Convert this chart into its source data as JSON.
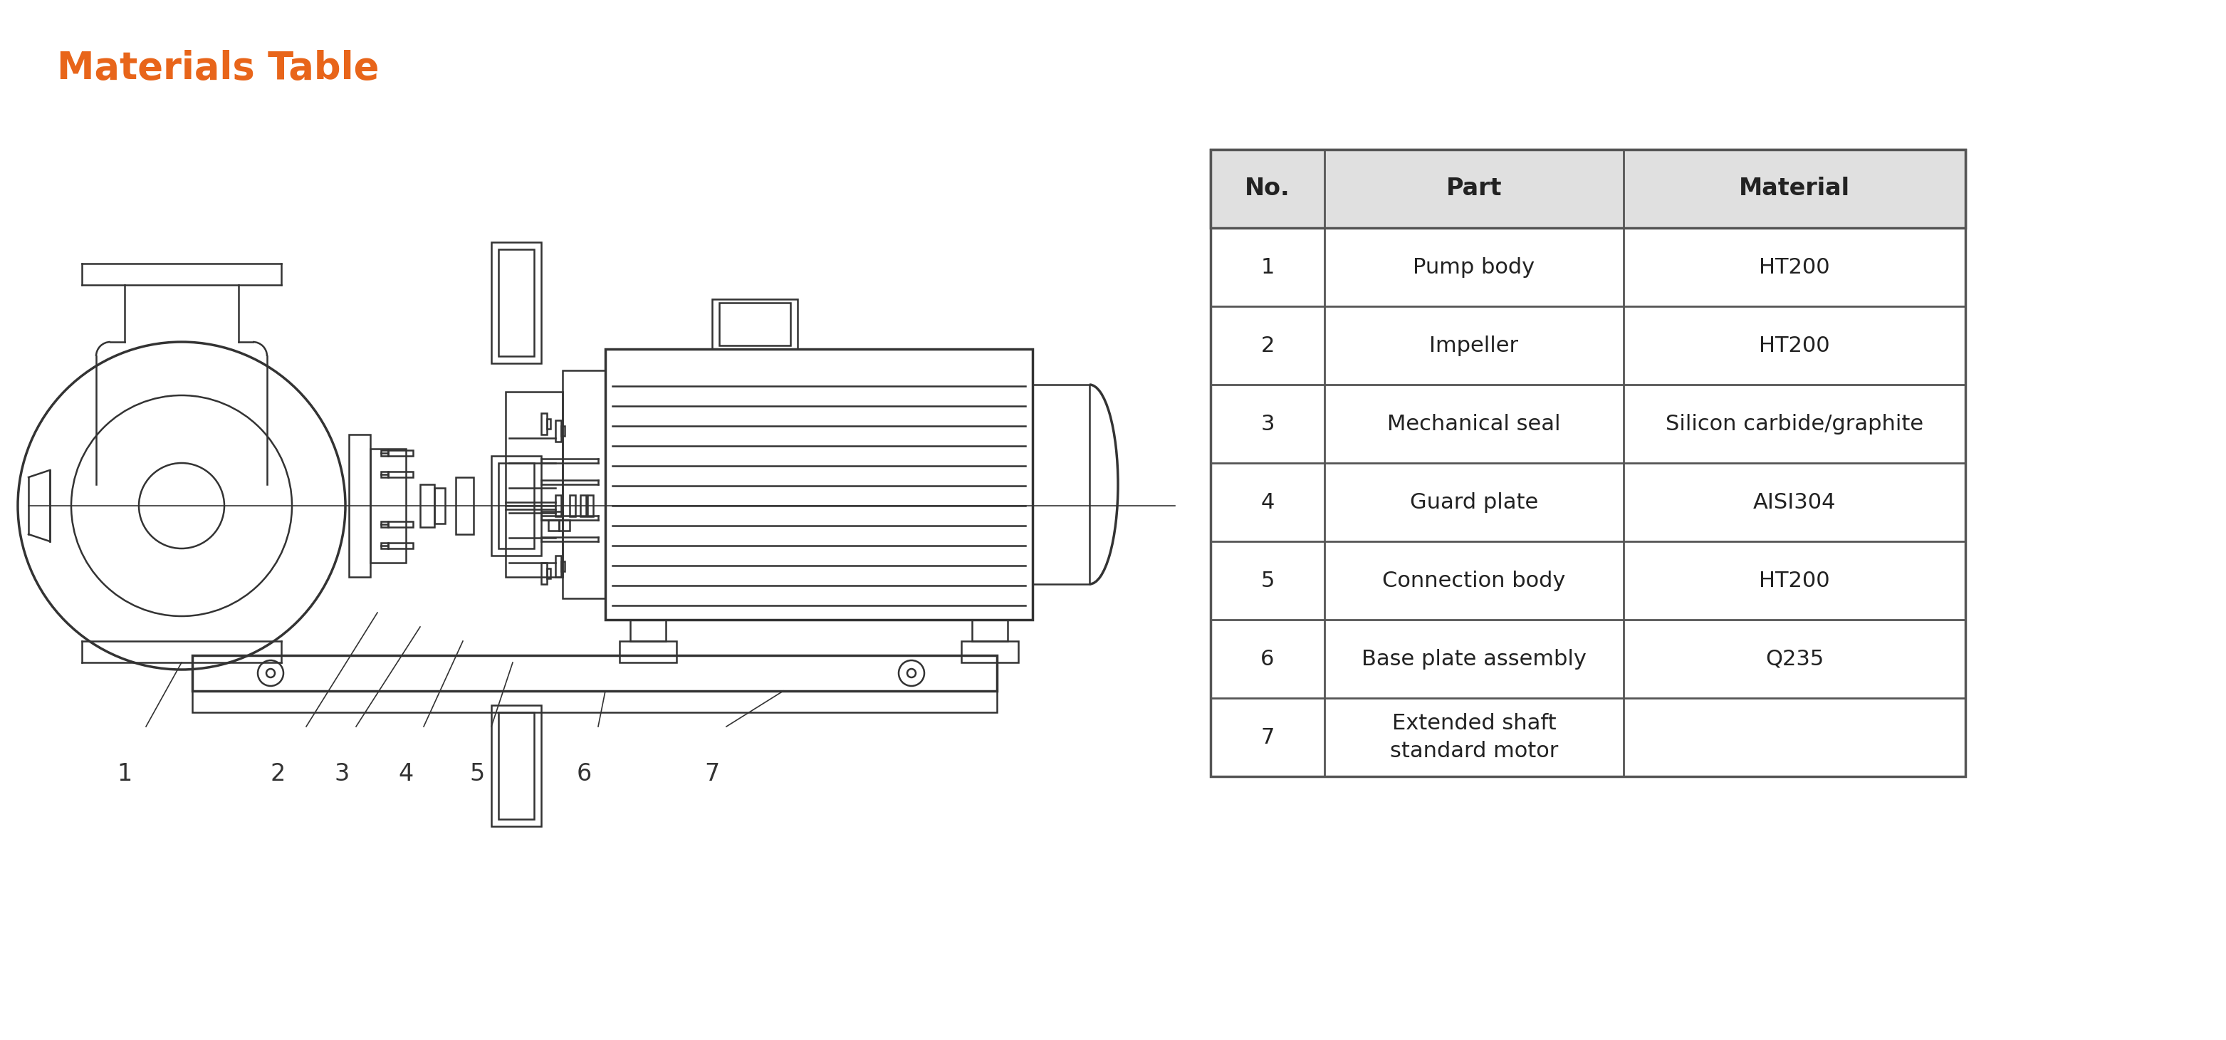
{
  "title": "Materials Table",
  "title_color": "#E8651A",
  "title_fontsize": 38,
  "background_color": "#ffffff",
  "table_header": [
    "No.",
    "Part",
    "Material"
  ],
  "table_header_bg": "#e8e8e8",
  "table_rows": [
    [
      "1",
      "Pump body",
      "HT200"
    ],
    [
      "2",
      "Impeller",
      "HT200"
    ],
    [
      "3",
      "Mechanical seal",
      "Silicon carbide/graphite"
    ],
    [
      "4",
      "Guard plate",
      "AISI304"
    ],
    [
      "5",
      "Connection body",
      "HT200"
    ],
    [
      "6",
      "Base plate assembly",
      "Q235"
    ],
    [
      "7",
      "Extended shaft\nstandard motor",
      ""
    ]
  ],
  "table_line_color": "#555555",
  "table_text_color": "#222222",
  "table_fontsize": 22,
  "diagram_line_color": "#333333",
  "label_numbers": [
    "1",
    "2",
    "3",
    "4",
    "5",
    "6",
    "7"
  ]
}
